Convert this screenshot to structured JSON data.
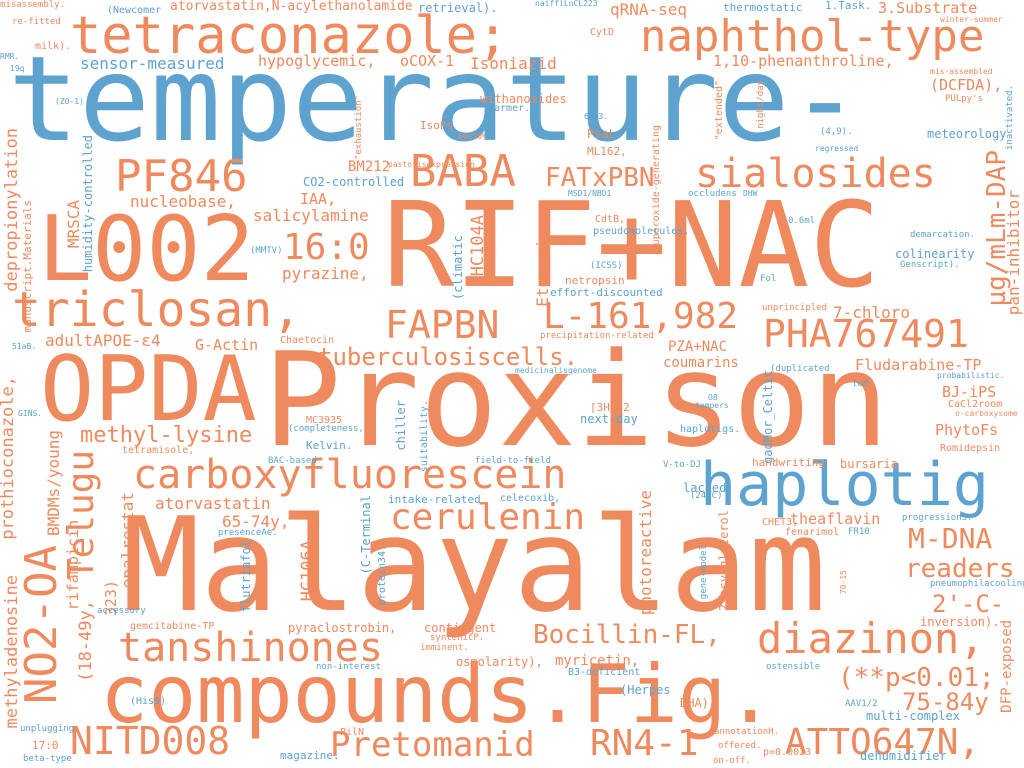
{
  "colors": {
    "orange": "#ee8a5e",
    "blue": "#5ea3cf",
    "background": "#ffffff"
  },
  "words": {
    "temperature": "temperature-",
    "malayalam": "Malayalam",
    "proxison": "Proxison",
    "rif_nac": "RIF+NAC",
    "compounds_fig": "compounds.Fig.",
    "tetraconazole": "tetraconazole;",
    "naphthol_type": "naphthol-type",
    "haplotig": "haplotig",
    "opda": "OPDA",
    "l002": "L002",
    "triclosan": "triclosan,",
    "carboxyfluorescein": "carboxyfluorescein",
    "pha767491": "PHA767491",
    "diazinon": "diazinon,",
    "tanshinones": "tanshinones",
    "nitd008": "NITD008",
    "pretomanid": "Pretomanid",
    "rn4_1": "RN4-1",
    "atto647n": "ATTO647N,",
    "sialosides": "sialosides",
    "baba": "BABA",
    "pf846": "PF846",
    "fapbn": "FAPBN",
    "l161982": "L-161,982",
    "cerulenin": "cerulenin",
    "telugu": "Telugu",
    "no2_oa": "NO2-OA",
    "bocillin": "Bocillin-FL,",
    "m_dna": "M-DNA",
    "p_value": "(**p<0.01;",
    "r16_0": "16:0",
    "tuberculosis": "tuberculosiscells.",
    "readers": "readers",
    "ug_mlm_dap": "µg/mLm-DAP",
    "age_75": "75-84y",
    "c2prime": "2'-C-",
    "fatxpbn": "FATxPBN",
    "methyl_lysine": "methyl-lysine",
    "atorvastatin_acyl": "atorvastatin,N-acylethanolamide",
    "retrieval": "retrieval).",
    "qrna_seq": "qRNA-seq",
    "sensor_measured": "sensor-measured",
    "hypoglycemic": "hypoglycemic,",
    "ocox1": "oCOX-1",
    "isoniazid": "Isoniazid",
    "phenanthroline": "1,10-phenanthroline,",
    "three_substrate": "3.Substrate",
    "dcfda": "(DCFDA),",
    "withanosides": "withanosides",
    "warmer": "warmer.",
    "isops": "IsoPs",
    "psal": "PsaL",
    "ml162": "ML162,",
    "meteorology": "meteorology",
    "bm212": "BM212",
    "co2_controlled": "CO2-controlled",
    "nucleobase": "nucleobase,",
    "iaa": "IAA,",
    "salicylamine": "salicylamine",
    "pyrazine": "pyrazine,",
    "adultapoe": "adultAPOE-ε4",
    "g_actin": "G-Actin",
    "chaetocin": "Chaetocin",
    "pza_nac": "PZA+NAC",
    "coumarins": "coumarins",
    "seven_chloro": "7-chloro",
    "fludarabine": "Fludarabine-TP",
    "bj_ips": "BJ-iPS",
    "cacl2room": "CaCl2room",
    "phytofs": "PhytoFs",
    "romidepsin": "Romidepsin",
    "atorvastatin": "atorvastatin",
    "age_65": "65-74y,",
    "mc3935": "MC3935",
    "kelvin": "Kelvin.",
    "intake_related": "intake-related",
    "celecoxib": "celecoxib,",
    "lacked": "lacked",
    "handwriting": "handwriting",
    "bursaria": "bursaria",
    "theaflavin": "theaflavin",
    "fenarimol": "fenarimol",
    "chet3": "CHET3,",
    "next_day": "next-day",
    "h3e2": "[3H]E2",
    "haplotigs": "haplotigs.",
    "contingent": "contingent",
    "gemcitabine": "gemcitabine-TP",
    "pyraclostrobin": "pyraclostrobin,",
    "osmolarity": "osmolarity),",
    "myricetin": "myricetin,",
    "b3_deficient": "B3-deficient",
    "herpes": "(Herpes",
    "dha": "DHA),",
    "multi_complex": "multi-complex",
    "dehumidifier": "dehumidifier",
    "inversion": "inversion).",
    "pneumophilacooling": "pneumophilacooling",
    "pilin": "PilN",
    "magazine": "magazine.",
    "beta_type": "beta-type",
    "r17_0": "17:0",
    "unplugging": "unplugging",
    "offered": "offered.",
    "on_off": "on-off.",
    "p_value2": "p=0.0023",
    "annotationh": "annotationH.",
    "aav1_2": "AAV1/2",
    "ostensible": "ostensible",
    "non_interest": "non-interest",
    "syntenicp": "syntenicP.",
    "imminent": "imminent.",
    "accessory": "accessory",
    "his9": "(His9)",
    "misassembly": "misassembly.",
    "refitted": "re-fitted",
    "rmr": "RMR.",
    "q19": "19q",
    "milk": "milk).",
    "newcomer": "(Newcomer",
    "cytd": "CytD",
    "naiffi": "naiffiLnCL223",
    "thermostatic": "thermostatic",
    "one_task": "1.Task.",
    "winter_summer": "winter-summer",
    "mis_assembled": "mis-assembled",
    "pulpys": "PULpy's",
    "zo1": "(ZO-1)",
    "exhaustion": "\"exhaustion\"",
    "n6803": "6803.",
    "sixty_ten": "60±10%",
    "extended": "\"extended\"",
    "night_day": "night/day",
    "four_nine": "(4,9).",
    "regressed": "regressed",
    "inactivated": "inactivated.",
    "pastorisexpression": "pastorisexpression",
    "msd1": "MSD1/NBD1",
    "occludens": "occludens",
    "dhw": "DHW",
    "cdtb": "CdtB,",
    "pseudomolecules": "pseudomolecules.",
    "ml06": "0.6ml",
    "demarcation": "demarcation.",
    "colinearity": "colinearity",
    "genscript": "Genscript).",
    "mmtv": "(MMTV)",
    "icss": "(ICSS)",
    "netropsin": "netropsin",
    "effort": "effort-discounted",
    "fol": "Fol",
    "unprincipled": "unprincipled",
    "precipitation": "precipitation-related",
    "medicinal": "medicinalisgenome",
    "duplicated": "(duplicated",
    "lod": "lod",
    "probabilistic": "probabilistic.",
    "o_carboxysome": "o-carboxysome",
    "o8": "O8",
    "tempers": "tempers",
    "gins": "GINS.",
    "completeness": "(completeness,",
    "bac_based": "BAC-based",
    "field_to_field": "field-to-field",
    "tetramisole": "tetramisole,",
    "v_to_dj": "V-to-DJ",
    "c24": "(24°C)",
    "progression": "progressionS.",
    "fr10": "FR10",
    "presenceae": "presenceAe.",
    "s1ab": "51aB.",
    "flutriafol": "flutriafol",
    "c_terminal": "(C-Terminal",
    "protein34": "protein34.",
    "chiller": "chiller",
    "suitability": "suitability.",
    "gadmor": "gadMor_Celtic",
    "climatic": "(climatic",
    "hc104a": "HC104A",
    "etomoxir": "Etomoxir,",
    "superoxide": "superoxide-generating",
    "pan_inhibitor": "pan-inhibitor",
    "dfp_exposed": "DFP-exposed",
    "photoreactive": "photoreactive",
    "two_acylglycerol": "2-acylglycerol",
    "gene_model": "gene-model",
    "seventy_fifteen": "70-15",
    "hc106a": "HC106A",
    "epalrestat": "epalrestat",
    "rifampicin": "rifampicin",
    "age_18": "(18-49y,",
    "n323": "323)",
    "bmdms": "BMDMs/young",
    "prothioconazole": "prothioconazole,",
    "methyladenosine": "methyladenosine",
    "depropionylation": "depropionylation",
    "mrsca": "MRSCA",
    "manuscript": "manuscript.Materials",
    "humidity": "humidity-controlled"
  }
}
